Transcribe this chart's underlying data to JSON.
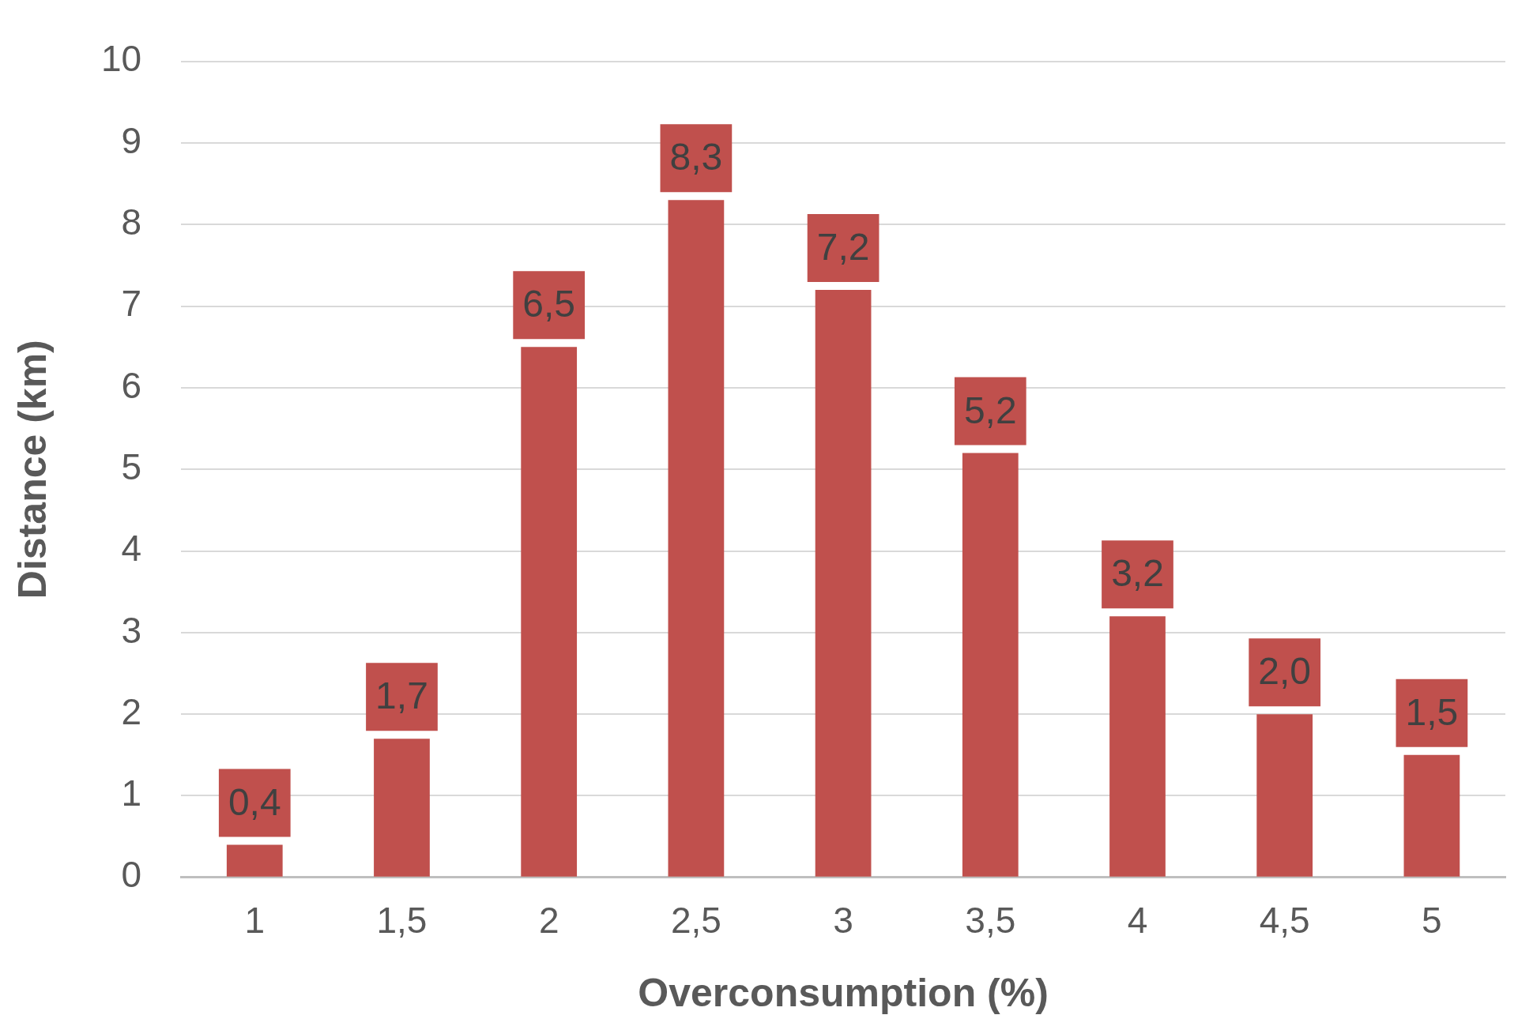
{
  "chart_data": {
    "type": "bar",
    "xlabel": "Overconsumption (%)",
    "ylabel": "Distance (km)",
    "categories": [
      "1",
      "1,5",
      "2",
      "2,5",
      "3",
      "3,5",
      "4",
      "4,5",
      "5"
    ],
    "values": [
      0.4,
      1.7,
      6.5,
      8.3,
      7.2,
      5.2,
      3.2,
      2.0,
      1.5
    ],
    "value_labels": [
      "0,4",
      "1,7",
      "6,5",
      "8,3",
      "7,2",
      "5,2",
      "3,2",
      "2,0",
      "1,5"
    ],
    "color": "#c0504d",
    "ylim": [
      0,
      10
    ],
    "yticks": [
      0,
      1,
      2,
      3,
      4,
      5,
      6,
      7,
      8,
      9,
      10
    ],
    "grid": "y",
    "legend": false
  }
}
